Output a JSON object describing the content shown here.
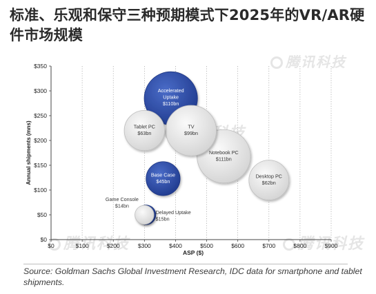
{
  "title": "标准、乐观和保守三种预期模式下2025年的VR/AR硬件市场规模",
  "watermark_text": "腾讯科技",
  "source": "Source: Goldman Sachs Global Investment Research, IDC data for smartphone and tablet shipments.",
  "colors": {
    "vr_bubble": "#2f4fa8",
    "reference_bubble": "#e6e6e6",
    "axis": "#444444",
    "grid": "#9a9a9a"
  },
  "chart_data": {
    "type": "scatter",
    "xlabel": "ASP ($)",
    "ylabel": "Annual shipments (mns)",
    "xlim": [
      0,
      900
    ],
    "ylim": [
      0,
      350
    ],
    "x_ticks": [
      0,
      100,
      200,
      300,
      400,
      500,
      600,
      700,
      800,
      900
    ],
    "y_ticks": [
      0,
      50,
      100,
      150,
      200,
      250,
      300,
      350
    ],
    "x_tick_labels": [
      "$0",
      "$100",
      "$200",
      "$300",
      "$400",
      "$500",
      "$600",
      "$700",
      "$800",
      "$900"
    ],
    "y_tick_labels": [
      "$0",
      "$50",
      "$100",
      "$150",
      "$200",
      "$250",
      "$300",
      "$350"
    ],
    "grid": "vertical dotted",
    "bubbles": [
      {
        "name": "Accelerated Uptake",
        "value_label": "$110bn",
        "x": 385,
        "y": 285,
        "size": 110,
        "group": "vr"
      },
      {
        "name": "Base Case",
        "value_label": "$45bn",
        "x": 360,
        "y": 123,
        "size": 45,
        "group": "vr"
      },
      {
        "name": "Delayed Uptake",
        "value_label": "$15bn",
        "x": 305,
        "y": 50,
        "size": 15,
        "group": "vr"
      },
      {
        "name": "Tablet PC",
        "value_label": "$63bn",
        "x": 300,
        "y": 220,
        "size": 63,
        "group": "reference"
      },
      {
        "name": "TV",
        "value_label": "$99bn",
        "x": 450,
        "y": 220,
        "size": 99,
        "group": "reference"
      },
      {
        "name": "Notebook PC",
        "value_label": "$111bn",
        "x": 555,
        "y": 168,
        "size": 111,
        "group": "reference"
      },
      {
        "name": "Desktop PC",
        "value_label": "$62bn",
        "x": 700,
        "y": 120,
        "size": 62,
        "group": "reference"
      },
      {
        "name": "Game Console",
        "value_label": "$14bn",
        "x": 300,
        "y": 50,
        "size": 14,
        "group": "reference"
      }
    ]
  }
}
